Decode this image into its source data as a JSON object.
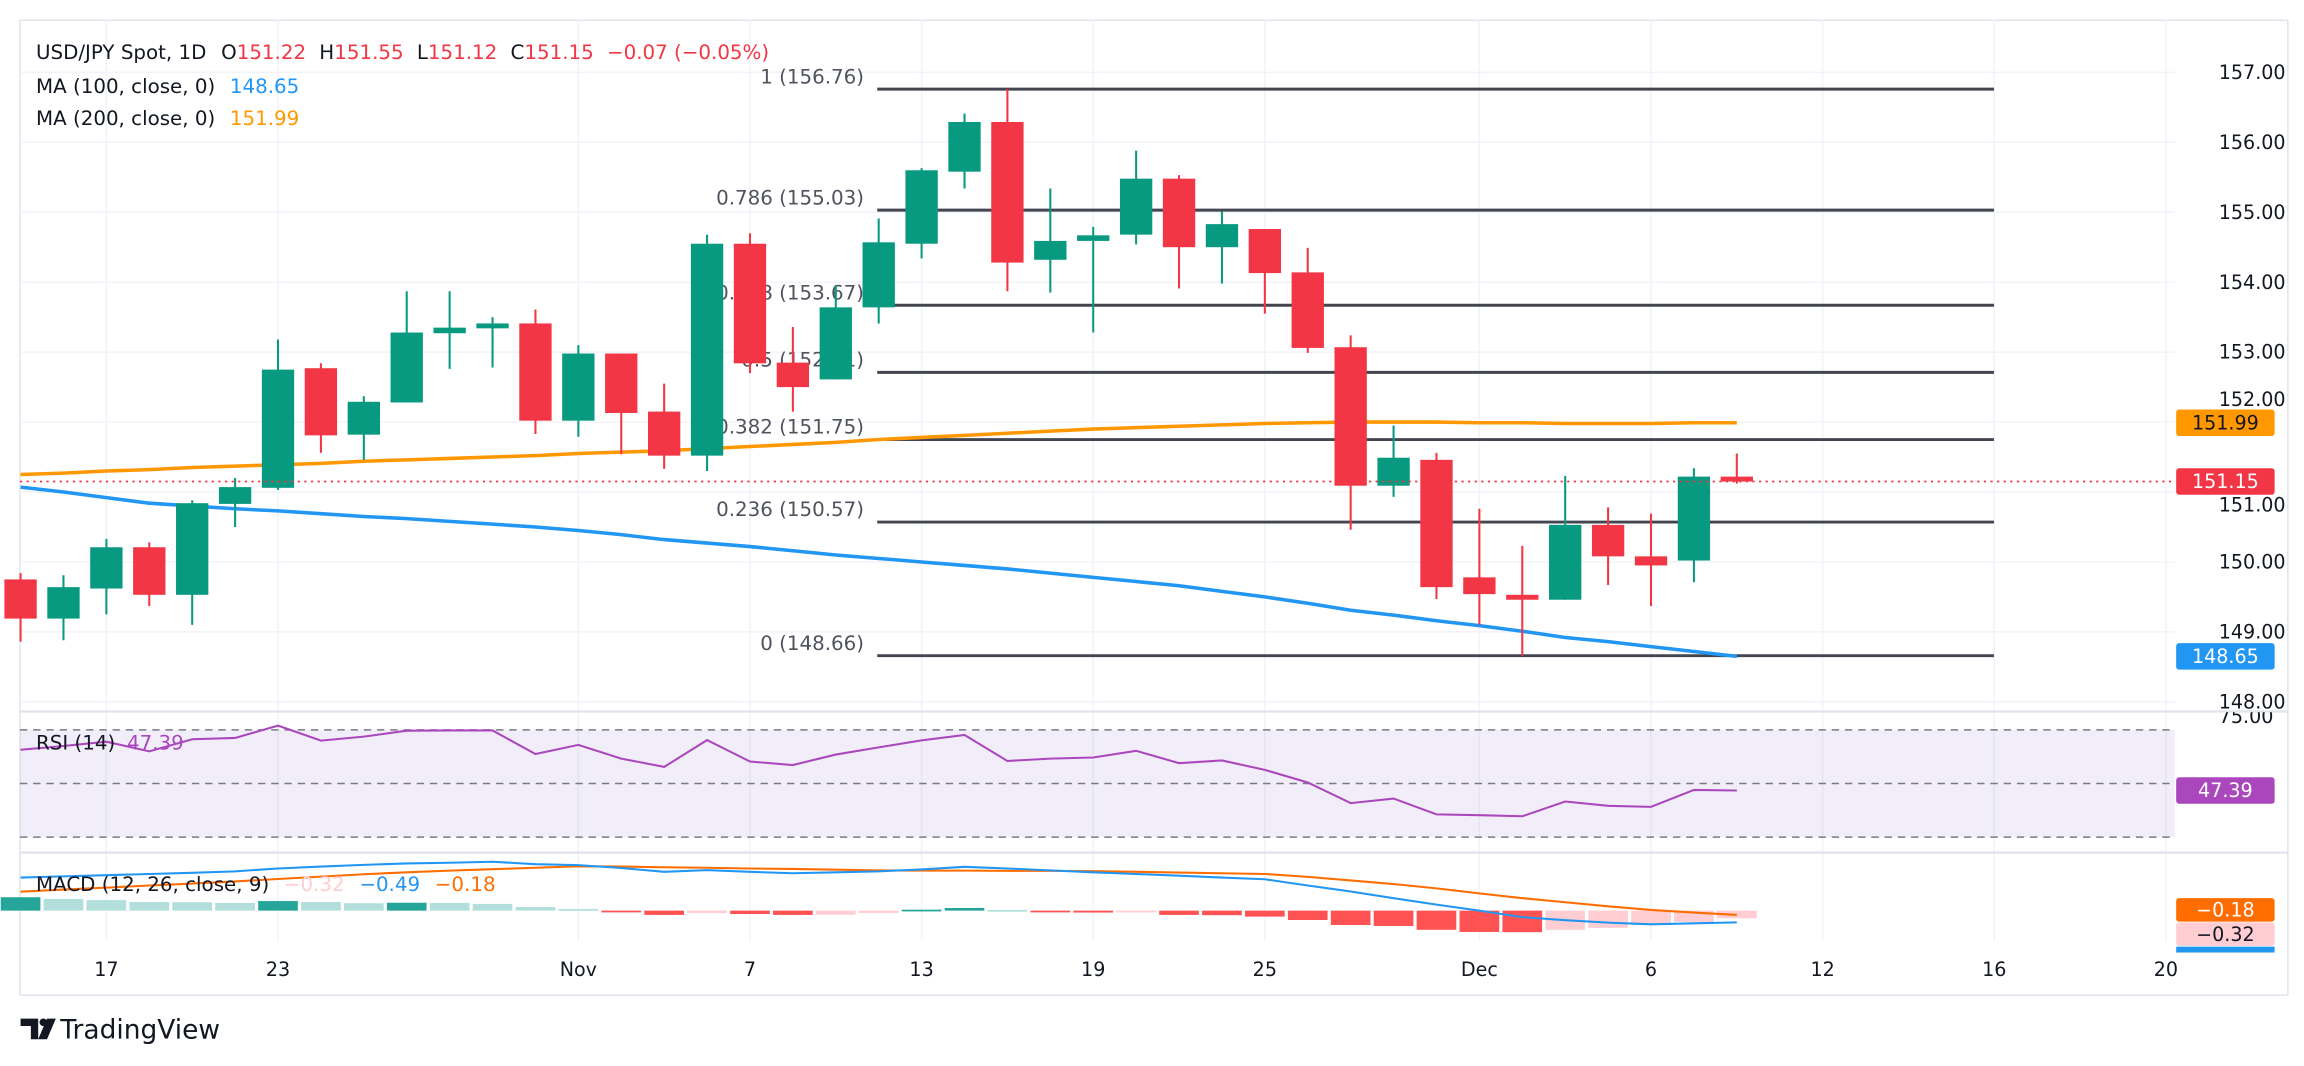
{
  "header": {
    "symbol": "USD/JPY Spot, 1D",
    "o_label": "O",
    "open": "151.22",
    "h_label": "H",
    "high": "151.55",
    "l_label": "L",
    "low": "151.12",
    "c_label": "C",
    "close": "151.15",
    "change": "−0.07 (−0.05%)",
    "value_color": "#F23645"
  },
  "indicators": {
    "ma100": {
      "label": "MA (100, close, 0)",
      "value": "148.65",
      "color": "#2196F3"
    },
    "ma200": {
      "label": "MA (200, close, 0)",
      "value": "151.99",
      "color": "#FF9800"
    },
    "rsi": {
      "label": "RSI (14)",
      "value": "47.39",
      "color": "#AB47BC"
    },
    "macd": {
      "label": "MACD (12, 26, close, 9)",
      "hist_value": "−0.32",
      "macd_value": "−0.49",
      "signal_value": "−0.18",
      "macd_color": "#2196F3",
      "signal_color": "#FF6D00"
    }
  },
  "fibonacci": [
    {
      "label": "1 (156.76)",
      "price": 156.76
    },
    {
      "label": "0.786 (155.03)",
      "price": 155.03
    },
    {
      "label": "0.618 (153.67)",
      "price": 153.67
    },
    {
      "label": "0.5 (152.71)",
      "price": 152.71
    },
    {
      "label": "0.382 (151.75)",
      "price": 151.75
    },
    {
      "label": "0.236 (150.57)",
      "price": 150.57
    },
    {
      "label": "0 (148.66)",
      "price": 148.66
    }
  ],
  "price_axis": {
    "ticks": [
      "157.00",
      "156.00",
      "155.00",
      "154.00",
      "153.00",
      "152.00",
      "151.00",
      "150.00",
      "149.00",
      "148.00"
    ],
    "tags": {
      "ma200": {
        "text": "151.99",
        "bg": "#FF9800",
        "fg": "#131722"
      },
      "last": {
        "text": "151.15",
        "bg": "#F23645",
        "fg": "#FFFFFF"
      },
      "ma100": {
        "text": "148.65",
        "bg": "#2196F3",
        "fg": "#FFFFFF"
      }
    }
  },
  "rsi_axis": {
    "top_tick": "75.00",
    "tag": {
      "text": "47.39",
      "bg": "#AB47BC",
      "fg": "#FFFFFF"
    }
  },
  "macd_axis": {
    "signal_tag": {
      "text": "−0.18",
      "bg": "#FF6D00",
      "fg": "#FFFFFF"
    },
    "hist_tag": {
      "text": "−0.32",
      "bg": "#FFCDD2",
      "fg": "#131722"
    },
    "macd_tag_color": "#2196F3"
  },
  "x_axis": {
    "ticks": [
      "17",
      "23",
      "Nov",
      "7",
      "13",
      "19",
      "25",
      "Dec",
      "6",
      "12",
      "16",
      "20"
    ]
  },
  "brand": "TradingView",
  "colors": {
    "up": "#089981",
    "down": "#F23645",
    "fib": "#434651",
    "rsi_band": "#7E57C2",
    "hist_pos_up": "#26A69A",
    "hist_pos_down": "#B2DFDB",
    "hist_neg_down": "#FF5252",
    "hist_neg_up": "#FFCDD2"
  },
  "chart_data": {
    "type": "candlestick",
    "title": "USD/JPY Spot, 1D",
    "ylim": [
      148,
      157
    ],
    "grid": true,
    "dates": [
      "Oct 15",
      "Oct 16",
      "Oct 17",
      "Oct 18",
      "Oct 21",
      "Oct 22",
      "Oct 23",
      "Oct 24",
      "Oct 25",
      "Oct 28",
      "Oct 29",
      "Oct 30",
      "Oct 31",
      "Nov 1",
      "Nov 4",
      "Nov 5",
      "Nov 6",
      "Nov 7",
      "Nov 8",
      "Nov 11",
      "Nov 12",
      "Nov 13",
      "Nov 14",
      "Nov 15",
      "Nov 18",
      "Nov 19",
      "Nov 20",
      "Nov 21",
      "Nov 22",
      "Nov 25",
      "Nov 26",
      "Nov 27",
      "Nov 28",
      "Nov 29",
      "Dec 2",
      "Dec 3",
      "Dec 4",
      "Dec 5",
      "Dec 6",
      "Dec 9",
      "Dec 10"
    ],
    "open": [
      149.75,
      149.19,
      149.62,
      150.21,
      149.53,
      150.83,
      151.06,
      152.77,
      151.82,
      152.28,
      153.27,
      153.34,
      153.41,
      152.02,
      152.98,
      152.15,
      151.52,
      154.55,
      152.85,
      152.61,
      153.64,
      154.55,
      155.58,
      156.29,
      154.32,
      154.59,
      154.68,
      155.48,
      154.5,
      154.76,
      154.14,
      153.07,
      151.09,
      151.46,
      149.78,
      149.53,
      149.46,
      150.53,
      150.08,
      150.02,
      151.22
    ],
    "high": [
      149.84,
      149.81,
      150.33,
      150.28,
      150.88,
      151.2,
      153.18,
      152.84,
      152.37,
      153.87,
      153.87,
      153.5,
      153.61,
      153.1,
      152.98,
      152.55,
      154.68,
      154.7,
      153.36,
      153.96,
      154.91,
      155.63,
      156.41,
      156.76,
      155.34,
      154.79,
      155.88,
      155.53,
      155.01,
      154.76,
      154.49,
      153.24,
      151.95,
      151.56,
      150.76,
      150.23,
      151.23,
      150.78,
      150.69,
      151.34,
      151.55
    ],
    "low": [
      148.86,
      148.88,
      149.25,
      149.37,
      149.1,
      150.5,
      151.03,
      151.56,
      151.46,
      152.28,
      152.76,
      152.78,
      151.83,
      151.79,
      151.54,
      151.33,
      151.3,
      152.7,
      152.15,
      152.61,
      153.41,
      154.34,
      155.34,
      153.87,
      153.85,
      153.28,
      154.54,
      153.91,
      153.98,
      153.55,
      152.99,
      150.46,
      150.93,
      149.47,
      149.1,
      148.66,
      149.46,
      149.67,
      149.37,
      149.71,
      151.12
    ],
    "close": [
      149.19,
      149.64,
      150.21,
      149.53,
      150.84,
      151.07,
      152.75,
      151.81,
      152.29,
      153.28,
      153.35,
      153.41,
      152.02,
      152.98,
      152.13,
      151.52,
      154.55,
      152.84,
      152.5,
      153.64,
      154.57,
      155.6,
      156.29,
      154.28,
      154.59,
      154.67,
      155.48,
      154.5,
      154.83,
      154.13,
      153.06,
      151.09,
      151.49,
      149.64,
      149.54,
      149.46,
      150.53,
      150.08,
      149.95,
      151.22,
      151.15
    ],
    "series": [
      {
        "name": "MA (100, close, 0)",
        "values": [
          151.07,
          151.0,
          150.92,
          150.84,
          150.8,
          150.76,
          150.73,
          150.69,
          150.65,
          150.62,
          150.58,
          150.54,
          150.5,
          150.45,
          150.39,
          150.32,
          150.27,
          150.22,
          150.16,
          150.1,
          150.05,
          150.0,
          149.95,
          149.9,
          149.84,
          149.78,
          149.72,
          149.66,
          149.58,
          149.5,
          149.41,
          149.31,
          149.24,
          149.16,
          149.09,
          149.01,
          148.92,
          148.86,
          148.79,
          148.72,
          148.65
        ]
      },
      {
        "name": "MA (200, close, 0)",
        "values": [
          151.25,
          151.27,
          151.3,
          151.32,
          151.35,
          151.37,
          151.39,
          151.41,
          151.44,
          151.46,
          151.48,
          151.5,
          151.52,
          151.55,
          151.57,
          151.59,
          151.62,
          151.65,
          151.68,
          151.71,
          151.75,
          151.78,
          151.81,
          151.84,
          151.87,
          151.9,
          151.92,
          151.94,
          151.96,
          151.98,
          151.99,
          152.0,
          152.0,
          152.0,
          151.99,
          151.99,
          151.98,
          151.98,
          151.98,
          151.99,
          151.99
        ]
      }
    ],
    "current_price": 151.15,
    "rsi": {
      "name": "RSI (14)",
      "ylim": [
        25,
        75
      ],
      "levels": [
        70,
        50,
        30
      ],
      "values": [
        62.6,
        64.0,
        65.6,
        62.0,
        66.5,
        67.0,
        71.6,
        66.0,
        67.5,
        69.7,
        69.8,
        69.8,
        61.0,
        64.4,
        59.3,
        56.2,
        66.2,
        58.2,
        56.9,
        60.8,
        63.5,
        66.1,
        68.1,
        58.4,
        59.3,
        59.7,
        62.2,
        57.6,
        58.6,
        55.1,
        50.4,
        42.7,
        44.4,
        38.5,
        38.2,
        37.8,
        43.3,
        41.7,
        41.3,
        47.6,
        47.39
      ]
    },
    "macd": {
      "name": "MACD (12, 26, close, 9)",
      "macd": [
        1.38,
        1.43,
        1.48,
        1.53,
        1.58,
        1.64,
        1.76,
        1.84,
        1.91,
        1.97,
        2.0,
        2.04,
        1.94,
        1.9,
        1.78,
        1.62,
        1.69,
        1.62,
        1.56,
        1.6,
        1.64,
        1.72,
        1.83,
        1.76,
        1.68,
        1.6,
        1.53,
        1.46,
        1.38,
        1.31,
        1.05,
        0.8,
        0.52,
        0.25,
        0.0,
        -0.27,
        -0.4,
        -0.5,
        -0.57,
        -0.53,
        -0.49
      ],
      "signal": [
        0.79,
        0.88,
        0.96,
        1.05,
        1.13,
        1.22,
        1.32,
        1.42,
        1.52,
        1.6,
        1.67,
        1.73,
        1.79,
        1.85,
        1.84,
        1.81,
        1.79,
        1.76,
        1.74,
        1.71,
        1.68,
        1.67,
        1.67,
        1.66,
        1.66,
        1.65,
        1.62,
        1.59,
        1.56,
        1.53,
        1.41,
        1.26,
        1.11,
        0.93,
        0.72,
        0.52,
        0.35,
        0.18,
        0.03,
        -0.08,
        -0.18
      ],
      "histogram": [
        0.56,
        0.49,
        0.44,
        0.36,
        0.35,
        0.32,
        0.4,
        0.36,
        0.31,
        0.33,
        0.32,
        0.28,
        0.15,
        0.07,
        -0.05,
        -0.18,
        -0.1,
        -0.14,
        -0.18,
        -0.17,
        -0.1,
        0.04,
        0.11,
        0.03,
        -0.06,
        -0.08,
        -0.07,
        -0.18,
        -0.19,
        -0.25,
        -0.39,
        -0.6,
        -0.64,
        -0.8,
        -0.89,
        -0.9,
        -0.8,
        -0.72,
        -0.6,
        -0.47,
        -0.32
      ]
    }
  }
}
